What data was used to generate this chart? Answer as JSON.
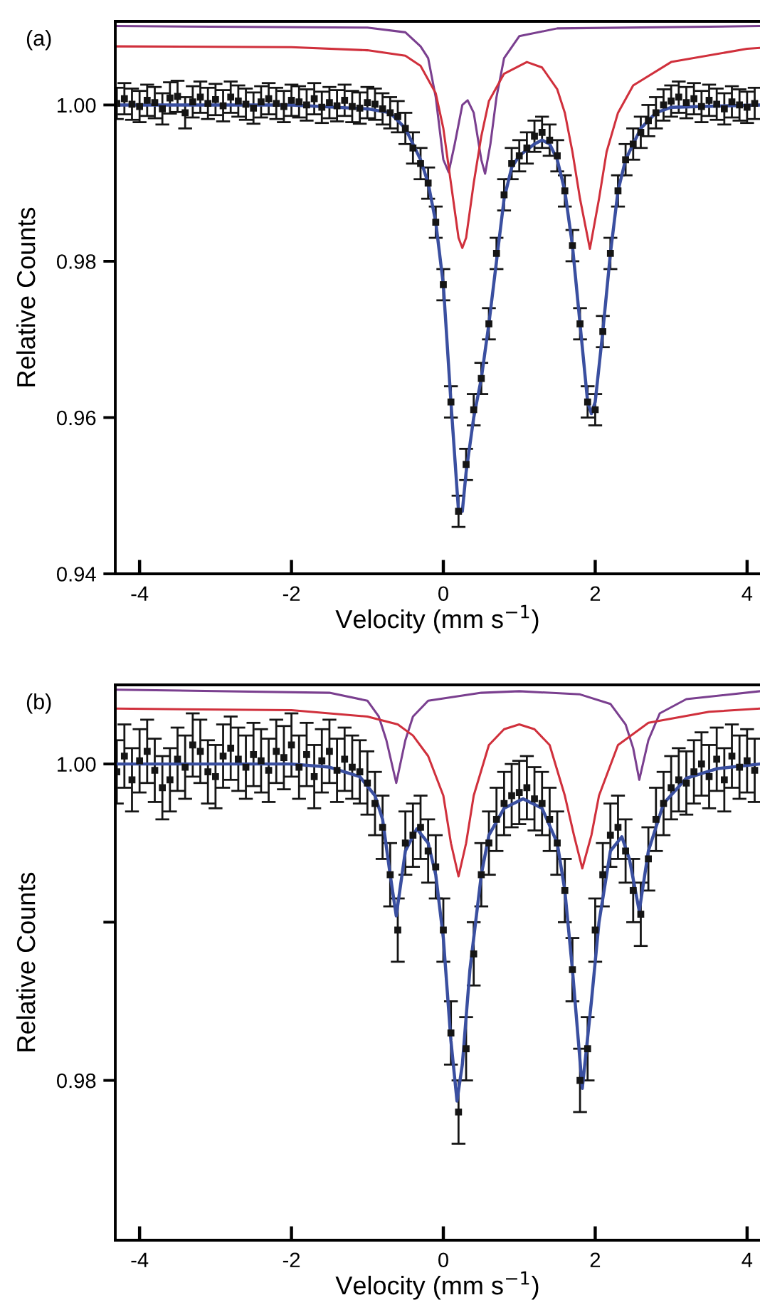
{
  "chart_data": [
    {
      "type": "line",
      "title": "(a)",
      "xlabel": "Velocity (mm s$^{−1}$)",
      "ylabel": "Relative Counts",
      "xlim": [
        -4.32,
        4.17
      ],
      "ylim": [
        0.94,
        1.0107
      ],
      "xticks": [
        -4,
        -2,
        0,
        2,
        4
      ],
      "yticks": [
        {
          "value": 0.94,
          "label": "0.94"
        },
        {
          "value": 0.96,
          "label": "0.96"
        },
        {
          "value": 0.98,
          "label": "0.98"
        },
        {
          "value": 1.0,
          "label": "1.00"
        }
      ],
      "grid": false,
      "legend": false,
      "series": [
        {
          "type": "scatter",
          "color": "#151515",
          "marker": "square",
          "x": [
            -4.3,
            -4.2,
            -4.1,
            -4.0,
            -3.9,
            -3.8,
            -3.7,
            -3.6,
            -3.5,
            -3.4,
            -3.3,
            -3.2,
            -3.1,
            -3.0,
            -2.9,
            -2.8,
            -2.7,
            -2.6,
            -2.5,
            -2.4,
            -2.3,
            -2.2,
            -2.1,
            -2.0,
            -1.9,
            -1.8,
            -1.7,
            -1.6,
            -1.5,
            -1.4,
            -1.3,
            -1.2,
            -1.1,
            -1.0,
            -0.9,
            -0.8,
            -0.7,
            -0.6,
            -0.5,
            -0.4,
            -0.3,
            -0.2,
            -0.1,
            0.0,
            0.1,
            0.2,
            0.3,
            0.4,
            0.5,
            0.6,
            0.7,
            0.8,
            0.9,
            1.0,
            1.1,
            1.2,
            1.3,
            1.4,
            1.5,
            1.6,
            1.7,
            1.8,
            1.9,
            2.0,
            2.1,
            2.2,
            2.3,
            2.4,
            2.5,
            2.6,
            2.7,
            2.8,
            2.9,
            3.0,
            3.1,
            3.2,
            3.3,
            3.4,
            3.5,
            3.6,
            3.7,
            3.8,
            3.9,
            4.0,
            4.1
          ],
          "values": [
            1.0002,
            1.0008,
            1.0001,
            0.9998,
            1.0006,
            1.0003,
            0.9995,
            1.0009,
            1.0011,
            0.999,
            1.0004,
            1.001,
            1.0002,
            1.0007,
            0.9999,
            1.001,
            1.0005,
            1.0001,
            0.9996,
            1.0004,
            1.0008,
            1.0002,
            0.9998,
            1.0006,
            1.0004,
            1.0,
            1.0008,
            0.9997,
            1.0003,
            0.9999,
            1.0006,
            0.9998,
            0.9996,
            1.0003,
            1.0001,
            0.9995,
            0.999,
            0.9985,
            0.997,
            0.9945,
            0.9925,
            0.99,
            0.985,
            0.977,
            0.962,
            0.948,
            0.954,
            0.961,
            0.965,
            0.972,
            0.981,
            0.9885,
            0.9925,
            0.9935,
            0.9945,
            0.996,
            0.9965,
            0.9955,
            0.9935,
            0.989,
            0.982,
            0.972,
            0.962,
            0.961,
            0.971,
            0.981,
            0.989,
            0.993,
            0.995,
            0.9965,
            0.998,
            0.999,
            1.0,
            1.0005,
            1.001,
            1.0003,
            1.0008,
            0.9998,
            1.0006,
            1.0001,
            0.9995,
            1.0004,
            1.0,
            0.9997,
            1.0002
          ],
          "errors": [
            0.002,
            0.002,
            0.002,
            0.002,
            0.002,
            0.002,
            0.002,
            0.002,
            0.002,
            0.002,
            0.002,
            0.002,
            0.002,
            0.002,
            0.002,
            0.002,
            0.002,
            0.002,
            0.002,
            0.002,
            0.002,
            0.002,
            0.002,
            0.002,
            0.002,
            0.002,
            0.002,
            0.002,
            0.002,
            0.002,
            0.002,
            0.002,
            0.002,
            0.002,
            0.002,
            0.002,
            0.002,
            0.002,
            0.002,
            0.002,
            0.002,
            0.002,
            0.002,
            0.002,
            0.002,
            0.002,
            0.002,
            0.002,
            0.002,
            0.002,
            0.002,
            0.002,
            0.002,
            0.002,
            0.002,
            0.002,
            0.002,
            0.002,
            0.002,
            0.002,
            0.002,
            0.002,
            0.002,
            0.002,
            0.002,
            0.002,
            0.002,
            0.002,
            0.002,
            0.002,
            0.002,
            0.002,
            0.002,
            0.002,
            0.002,
            0.002,
            0.002,
            0.002,
            0.002,
            0.002,
            0.002,
            0.002,
            0.002,
            0.002,
            0.002
          ]
        },
        {
          "type": "line",
          "color": "#3a4fa0",
          "x": [
            -4.32,
            -2,
            -1,
            -0.7,
            -0.5,
            -0.3,
            -0.2,
            -0.1,
            0,
            0.1,
            0.2,
            0.25,
            0.3,
            0.4,
            0.5,
            0.6,
            0.7,
            0.8,
            0.9,
            1.0,
            1.2,
            1.3,
            1.4,
            1.5,
            1.6,
            1.7,
            1.8,
            1.9,
            1.95,
            2.0,
            2.1,
            2.2,
            2.3,
            2.4,
            2.6,
            2.8,
            3.0,
            4.17
          ],
          "values": [
            1.0,
            1.0,
            0.9995,
            0.999,
            0.997,
            0.993,
            0.99,
            0.985,
            0.977,
            0.962,
            0.948,
            0.948,
            0.953,
            0.96,
            0.965,
            0.972,
            0.98,
            0.988,
            0.992,
            0.9935,
            0.995,
            0.9955,
            0.995,
            0.993,
            0.989,
            0.982,
            0.972,
            0.962,
            0.9605,
            0.962,
            0.971,
            0.981,
            0.989,
            0.993,
            0.997,
            0.999,
            0.9997,
            1.0
          ]
        },
        {
          "type": "line",
          "color": "#7a3f8f",
          "x": [
            -4.32,
            -1,
            -0.5,
            -0.3,
            -0.2,
            -0.1,
            0,
            0.07,
            0.15,
            0.25,
            0.32,
            0.4,
            0.5,
            0.55,
            0.62,
            0.7,
            0.8,
            1.0,
            1.5,
            4.17
          ],
          "values": [
            1.0101,
            1.0099,
            1.0093,
            1.0075,
            1.006,
            1.001,
            0.993,
            0.9914,
            0.995,
            1.0,
            1.0006,
            0.999,
            0.993,
            0.9912,
            0.995,
            1.001,
            1.006,
            1.0088,
            1.0098,
            1.0101
          ]
        },
        {
          "type": "line",
          "color": "#d0303c",
          "x": [
            -4.32,
            -2,
            -1,
            -0.5,
            -0.3,
            -0.1,
            0,
            0.1,
            0.2,
            0.25,
            0.3,
            0.4,
            0.5,
            0.6,
            0.8,
            1.1,
            1.3,
            1.5,
            1.6,
            1.7,
            1.8,
            1.93,
            2.05,
            2.15,
            2.3,
            2.5,
            3.0,
            4.0,
            4.17
          ],
          "values": [
            1.0075,
            1.0074,
            1.007,
            1.0063,
            1.005,
            1.0015,
            0.997,
            0.99,
            0.983,
            0.9817,
            0.983,
            0.99,
            0.996,
            1.0005,
            1.004,
            1.0055,
            1.0048,
            1.002,
            0.999,
            0.994,
            0.988,
            0.9816,
            0.988,
            0.994,
            0.999,
            1.0025,
            1.0055,
            1.0072,
            1.0073
          ]
        }
      ]
    },
    {
      "type": "line",
      "title": "(b)",
      "xlabel": "Velocity (mm s$^{−1}$)",
      "ylabel": "Relative Counts",
      "xlim": [
        -4.32,
        4.17
      ],
      "ylim": [
        0.9699,
        1.005
      ],
      "xticks": [
        -4,
        -2,
        0,
        2,
        4
      ],
      "yticks": [
        {
          "value": 0.98,
          "label": "0.98"
        },
        {
          "value": 0.99,
          "label": null
        },
        {
          "value": 1.0,
          "label": "1.00"
        }
      ],
      "grid": false,
      "legend": false,
      "series": [
        {
          "type": "scatter",
          "color": "#151515",
          "marker": "square",
          "x": [
            -4.3,
            -4.2,
            -4.1,
            -4.0,
            -3.9,
            -3.8,
            -3.7,
            -3.6,
            -3.5,
            -3.4,
            -3.3,
            -3.2,
            -3.1,
            -3.0,
            -2.9,
            -2.8,
            -2.7,
            -2.6,
            -2.5,
            -2.4,
            -2.3,
            -2.2,
            -2.1,
            -2.0,
            -1.9,
            -1.8,
            -1.7,
            -1.6,
            -1.5,
            -1.4,
            -1.3,
            -1.2,
            -1.1,
            -1.0,
            -0.9,
            -0.8,
            -0.7,
            -0.6,
            -0.5,
            -0.4,
            -0.3,
            -0.2,
            -0.1,
            0.0,
            0.1,
            0.2,
            0.3,
            0.4,
            0.5,
            0.6,
            0.7,
            0.8,
            0.9,
            1.0,
            1.1,
            1.2,
            1.3,
            1.4,
            1.5,
            1.6,
            1.7,
            1.8,
            1.9,
            2.0,
            2.1,
            2.2,
            2.3,
            2.4,
            2.5,
            2.6,
            2.7,
            2.8,
            2.9,
            3.0,
            3.1,
            3.2,
            3.3,
            3.4,
            3.5,
            3.6,
            3.7,
            3.8,
            3.9,
            4.0,
            4.1
          ],
          "values": [
            0.9995,
            1.0005,
            0.999,
            1.0002,
            1.0008,
            0.9996,
            0.9985,
            0.999,
            1.0003,
            0.9998,
            1.0012,
            1.0008,
            0.9995,
            0.9992,
            1.0005,
            1.001,
            1.0003,
            0.9998,
            1.0006,
            1.0002,
            0.9996,
            1.0008,
            1.0004,
            1.0012,
            0.9998,
            1.0006,
            0.9992,
            1.0002,
            1.0008,
            0.9996,
            1.0003,
            0.9998,
            0.9995,
            0.9988,
            0.9975,
            0.996,
            0.993,
            0.9895,
            0.995,
            0.9955,
            0.996,
            0.9945,
            0.9935,
            0.9895,
            0.983,
            0.978,
            0.982,
            0.988,
            0.993,
            0.995,
            0.9965,
            0.9975,
            0.998,
            0.9982,
            0.9985,
            0.9978,
            0.9975,
            0.9965,
            0.995,
            0.992,
            0.987,
            0.98,
            0.982,
            0.9895,
            0.993,
            0.9955,
            0.996,
            0.9945,
            0.992,
            0.9905,
            0.994,
            0.9965,
            0.9975,
            0.9985,
            0.999,
            0.9988,
            0.9995,
            1.0,
            0.9992,
            1.0003,
            0.999,
            1.0005,
            0.9998,
            1.0002,
            0.9996
          ],
          "errors": [
            0.002,
            0.002,
            0.002,
            0.002,
            0.002,
            0.002,
            0.002,
            0.002,
            0.002,
            0.002,
            0.002,
            0.002,
            0.002,
            0.002,
            0.002,
            0.002,
            0.002,
            0.002,
            0.002,
            0.002,
            0.002,
            0.002,
            0.002,
            0.002,
            0.002,
            0.002,
            0.002,
            0.002,
            0.002,
            0.002,
            0.002,
            0.002,
            0.002,
            0.002,
            0.002,
            0.002,
            0.002,
            0.002,
            0.002,
            0.002,
            0.002,
            0.002,
            0.002,
            0.002,
            0.002,
            0.002,
            0.002,
            0.002,
            0.002,
            0.002,
            0.002,
            0.002,
            0.002,
            0.002,
            0.002,
            0.002,
            0.002,
            0.002,
            0.002,
            0.002,
            0.002,
            0.002,
            0.002,
            0.002,
            0.002,
            0.002,
            0.002,
            0.002,
            0.002,
            0.002,
            0.002,
            0.002,
            0.002,
            0.002,
            0.002,
            0.002,
            0.002,
            0.002,
            0.002,
            0.002,
            0.002,
            0.002,
            0.002,
            0.002,
            0.002
          ]
        },
        {
          "type": "line",
          "color": "#3a4fa0",
          "x": [
            -4.32,
            -2,
            -1.5,
            -1.1,
            -0.9,
            -0.8,
            -0.7,
            -0.62,
            -0.5,
            -0.35,
            -0.2,
            -0.1,
            0,
            0.1,
            0.18,
            0.25,
            0.35,
            0.5,
            0.6,
            0.8,
            1.05,
            1.3,
            1.5,
            1.6,
            1.7,
            1.83,
            1.95,
            2.05,
            2.2,
            2.35,
            2.45,
            2.58,
            2.7,
            2.9,
            3.2,
            3.6,
            4.17
          ],
          "values": [
            1.0,
            1.0,
            0.9998,
            0.9992,
            0.998,
            0.9965,
            0.993,
            0.9904,
            0.9945,
            0.9959,
            0.995,
            0.993,
            0.989,
            0.9825,
            0.9787,
            0.981,
            0.987,
            0.993,
            0.9955,
            0.9972,
            0.9978,
            0.9972,
            0.995,
            0.992,
            0.987,
            0.9795,
            0.985,
            0.99,
            0.9945,
            0.9954,
            0.994,
            0.9907,
            0.9945,
            0.9975,
            0.9991,
            0.9997,
            1.0
          ]
        },
        {
          "type": "line",
          "color": "#7a3f8f",
          "x": [
            -4.32,
            -1.5,
            -1.0,
            -0.85,
            -0.75,
            -0.62,
            -0.5,
            -0.4,
            -0.2,
            0.5,
            1.0,
            1.8,
            2.2,
            2.4,
            2.5,
            2.58,
            2.7,
            2.85,
            3.2,
            4.17
          ],
          "values": [
            1.0047,
            1.0045,
            1.004,
            1.003,
            1.0015,
            0.9988,
            1.0015,
            1.003,
            1.004,
            1.0045,
            1.0046,
            1.0044,
            1.0038,
            1.0025,
            1.001,
            0.999,
            1.0015,
            1.0032,
            1.0041,
            1.0046
          ]
        },
        {
          "type": "line",
          "color": "#d0303c",
          "x": [
            -4.32,
            -2,
            -1,
            -0.6,
            -0.4,
            -0.2,
            0,
            0.1,
            0.2,
            0.3,
            0.4,
            0.6,
            0.8,
            1.0,
            1.2,
            1.4,
            1.6,
            1.72,
            1.83,
            1.95,
            2.05,
            2.3,
            2.7,
            3.5,
            4.17
          ],
          "values": [
            1.0035,
            1.0034,
            1.003,
            1.0025,
            1.0018,
            1.0005,
            0.998,
            0.995,
            0.9929,
            0.995,
            0.998,
            1.0012,
            1.0022,
            1.0025,
            1.0022,
            1.0012,
            0.998,
            0.9955,
            0.9934,
            0.9955,
            0.998,
            1.0012,
            1.0026,
            1.0033,
            1.0035
          ]
        }
      ]
    }
  ]
}
